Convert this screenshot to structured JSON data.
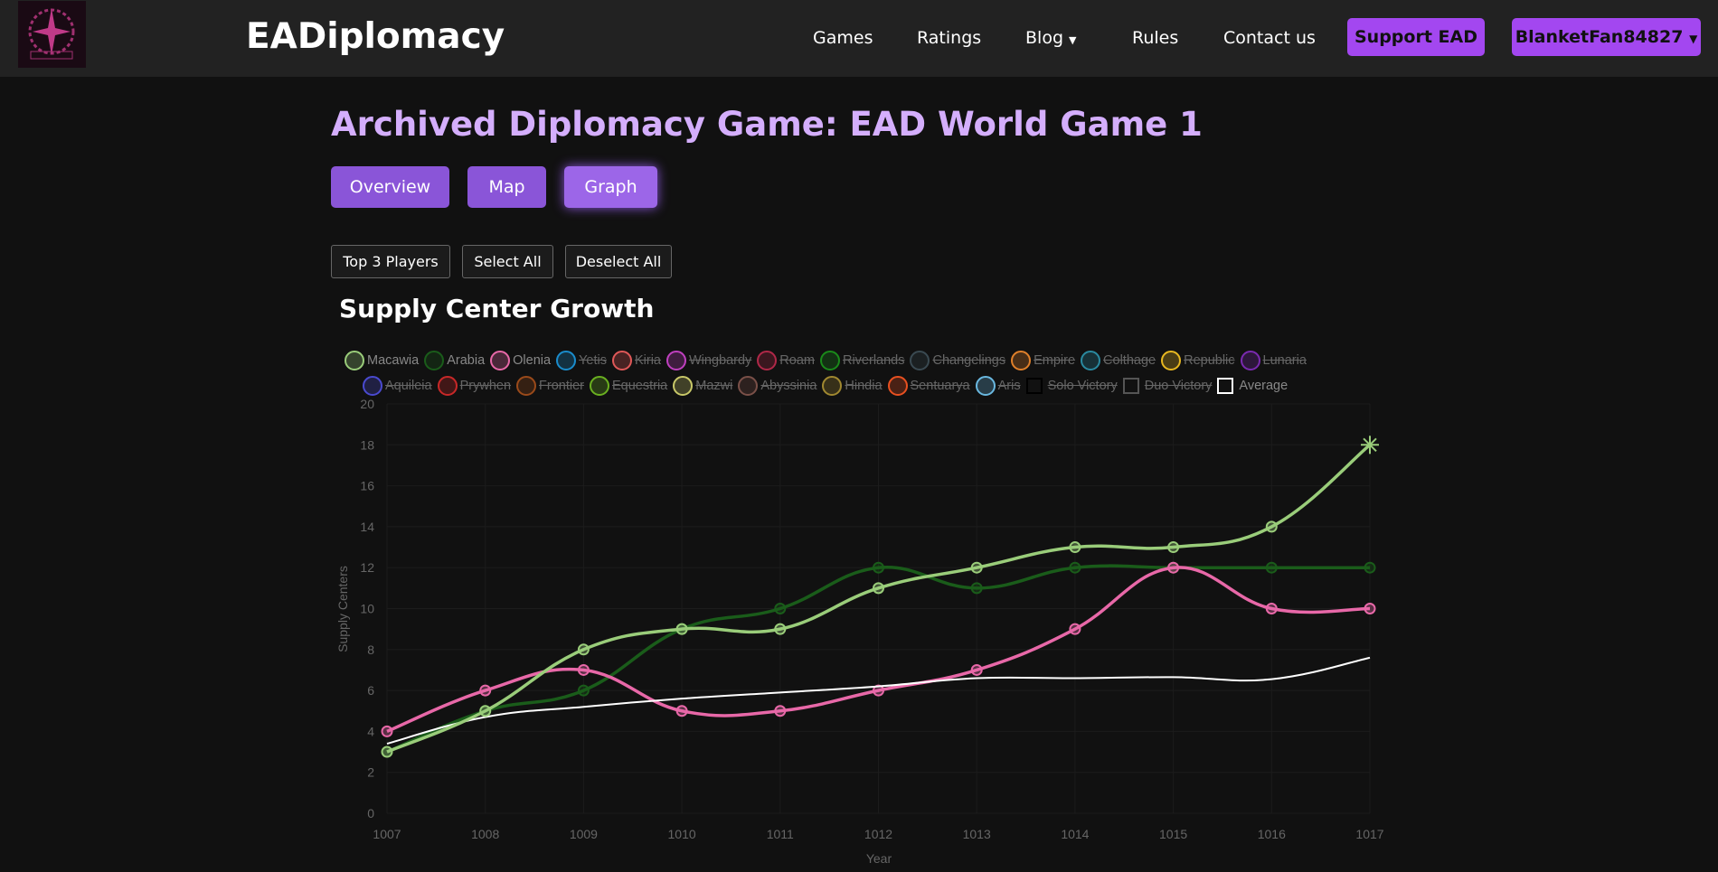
{
  "nav": {
    "brand": "EADiplomacy",
    "links": [
      "Games",
      "Ratings",
      "Blog",
      "Rules",
      "Contact us"
    ],
    "blog_caret": "▼",
    "support": "Support EAD",
    "user": "BlanketFan84827",
    "user_caret": "▼"
  },
  "page": {
    "title": "Archived Diplomacy Game: EAD World Game 1",
    "tabs": [
      "Overview",
      "Map",
      "Graph"
    ],
    "active_tab": "Graph",
    "buttons": [
      "Top 3 Players",
      "Select All",
      "Deselect All"
    ]
  },
  "legend": [
    {
      "name": "Macawia",
      "color": "#9acd7a",
      "hidden": false
    },
    {
      "name": "Arabia",
      "color": "#1a5c1a",
      "hidden": false
    },
    {
      "name": "Olenia",
      "color": "#e868a8",
      "hidden": false
    },
    {
      "name": "Yetis",
      "color": "#1a8ccc",
      "hidden": true
    },
    {
      "name": "Kiria",
      "color": "#e05858",
      "hidden": true
    },
    {
      "name": "Wingbardy",
      "color": "#c040c0",
      "hidden": true
    },
    {
      "name": "Roam",
      "color": "#b02848",
      "hidden": true
    },
    {
      "name": "Riverlands",
      "color": "#1a8a1a",
      "hidden": true
    },
    {
      "name": "Changelings",
      "color": "#3a4a52",
      "hidden": true
    },
    {
      "name": "Empire",
      "color": "#e0802a",
      "hidden": true
    },
    {
      "name": "Colthage",
      "color": "#2a8aa0",
      "hidden": true
    },
    {
      "name": "Republic",
      "color": "#e8b820",
      "hidden": true
    },
    {
      "name": "Lunaria",
      "color": "#7a2ab0",
      "hidden": true
    },
    {
      "name": "Aquileia",
      "color": "#4a4ad0",
      "hidden": true
    },
    {
      "name": "Prywhen",
      "color": "#c82828",
      "hidden": true
    },
    {
      "name": "Frontier",
      "color": "#9a4a1a",
      "hidden": true
    },
    {
      "name": "Equestria",
      "color": "#6ab020",
      "hidden": true
    },
    {
      "name": "Mazwi",
      "color": "#c8c868",
      "hidden": true
    },
    {
      "name": "Abyssinia",
      "color": "#7a5048",
      "hidden": true
    },
    {
      "name": "Hindia",
      "color": "#a08830",
      "hidden": true
    },
    {
      "name": "Sentuarya",
      "color": "#e85020",
      "hidden": true
    },
    {
      "name": "Aris",
      "color": "#6ab8e0",
      "hidden": true
    },
    {
      "name": "Solo Victory",
      "color": "#000000",
      "hidden": true,
      "square": true
    },
    {
      "name": "Duo Victory",
      "color": "#555555",
      "hidden": true,
      "square": true
    },
    {
      "name": "Average",
      "color": "#ffffff",
      "hidden": false,
      "square": true
    }
  ],
  "chart_data": {
    "type": "line",
    "title": "Supply Center Growth",
    "xlabel": "Year",
    "ylabel": "Supply Centers",
    "x": [
      1007,
      1008,
      1009,
      1010,
      1011,
      1012,
      1013,
      1014,
      1015,
      1016,
      1017
    ],
    "ylim": [
      0,
      20
    ],
    "yticks": [
      0,
      2,
      4,
      6,
      8,
      10,
      12,
      14,
      16,
      18,
      20
    ],
    "grid": true,
    "legend": "top",
    "series": [
      {
        "name": "Arabia",
        "color": "#1a5c1a",
        "values": [
          3,
          5,
          6,
          9,
          10,
          12,
          11,
          12,
          12,
          12,
          12
        ]
      },
      {
        "name": "Olenia",
        "color": "#e868a8",
        "values": [
          4,
          6,
          7,
          5,
          5,
          6,
          7,
          9,
          12,
          10,
          10
        ]
      },
      {
        "name": "Average",
        "color": "#ffffff",
        "values": [
          3.4,
          4.7,
          5.2,
          5.6,
          5.9,
          6.2,
          6.6,
          6.6,
          6.65,
          6.55,
          7.6
        ],
        "markers": false
      },
      {
        "name": "Macawia",
        "color": "#9acd7a",
        "values": [
          3,
          5,
          8,
          9,
          9,
          11,
          12,
          13,
          13,
          14,
          18
        ],
        "final_marker": "star"
      }
    ]
  }
}
